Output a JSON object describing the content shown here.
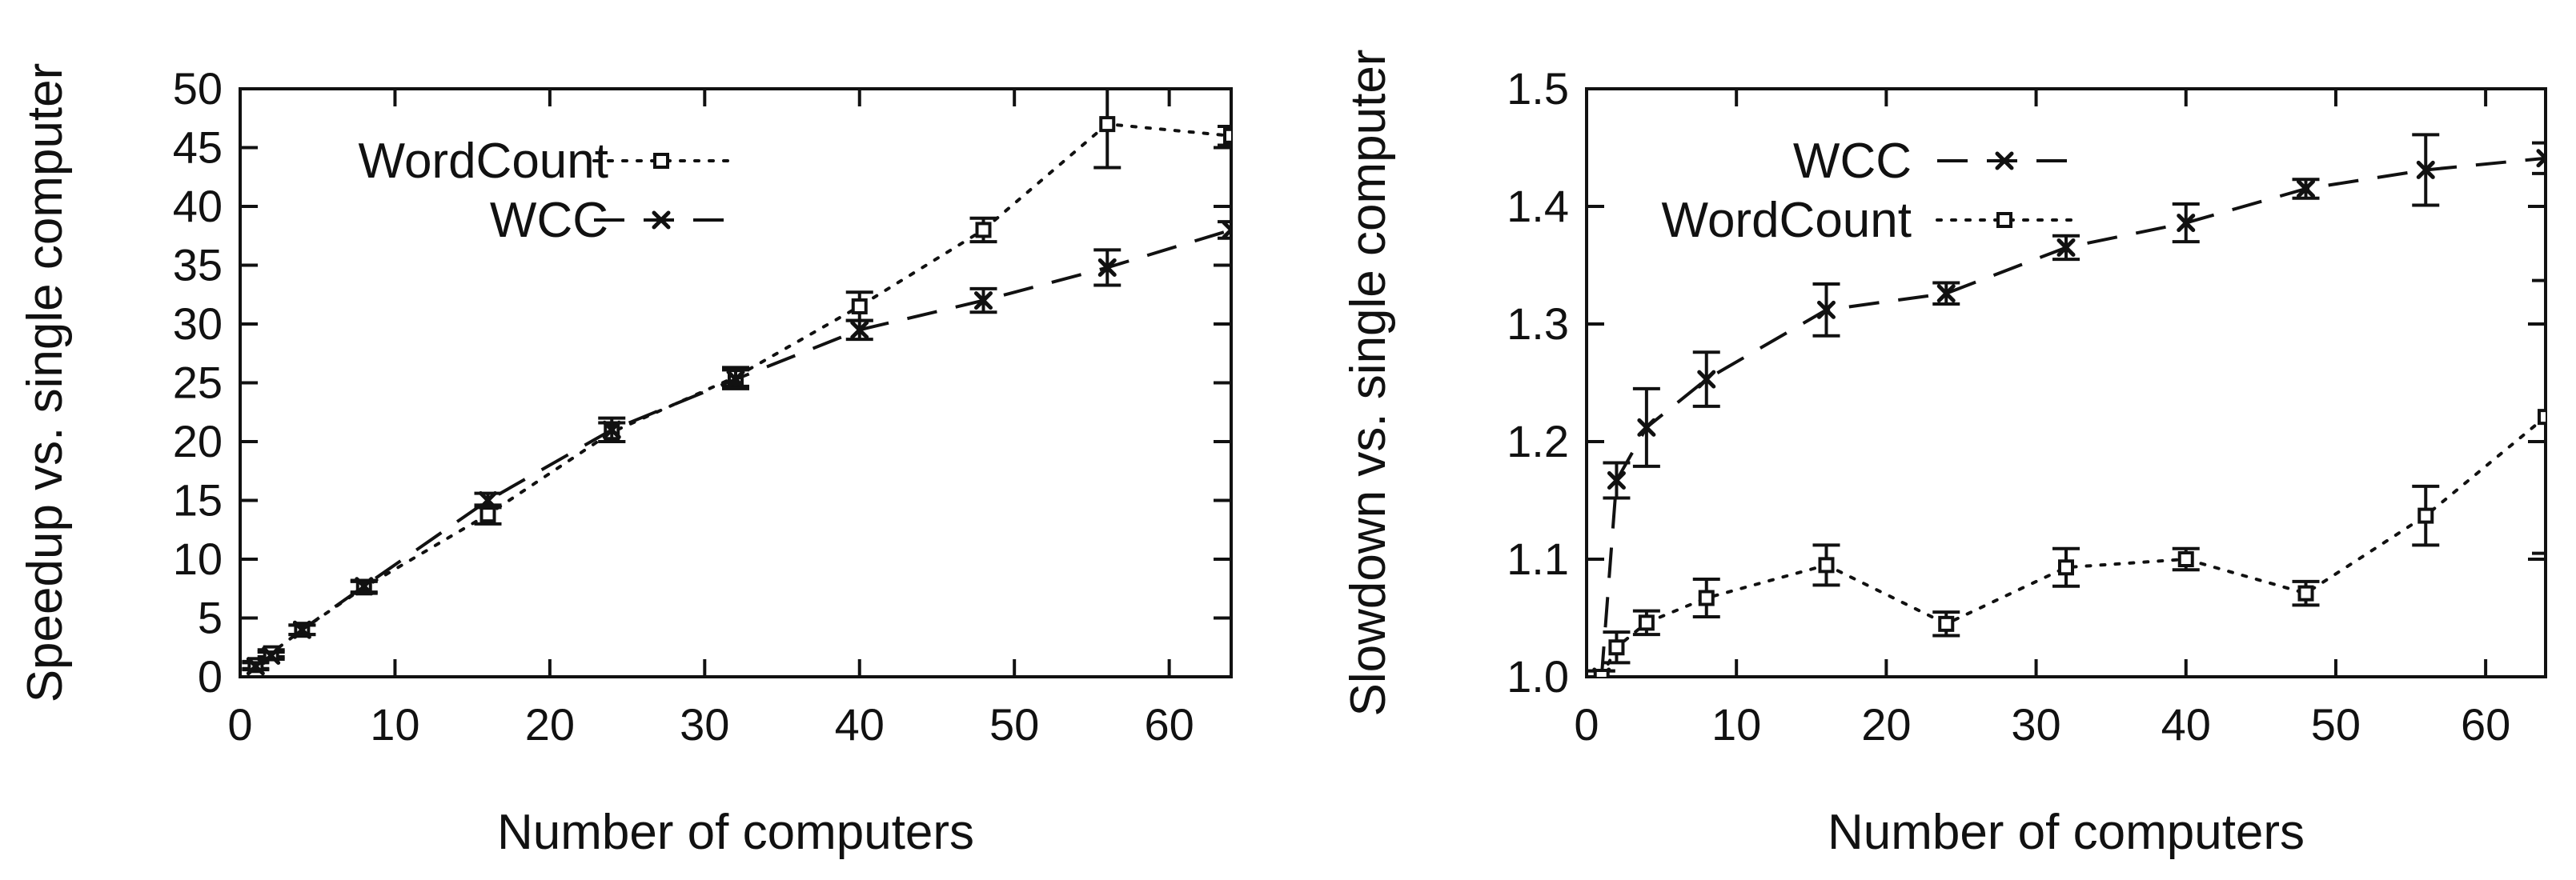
{
  "chart_data": [
    {
      "type": "line",
      "xlabel": "Number of computers",
      "ylabel": "Speedup vs. single computer",
      "xlim": [
        0,
        64
      ],
      "ylim": [
        0,
        50
      ],
      "xticks": [
        0,
        10,
        20,
        30,
        40,
        50,
        60
      ],
      "yticks": [
        0,
        5,
        10,
        15,
        20,
        25,
        30,
        35,
        40,
        45,
        50
      ],
      "grid": false,
      "legend_position": "top-left",
      "series": [
        {
          "name": "WordCount",
          "line_style": "dotted",
          "marker": "square",
          "color": "#111111",
          "points": [
            {
              "x": 1,
              "y": 1,
              "err": 0.3
            },
            {
              "x": 2,
              "y": 2,
              "err": 0.3
            },
            {
              "x": 4,
              "y": 4,
              "err": 0.4
            },
            {
              "x": 8,
              "y": 7.6,
              "err": 0.5
            },
            {
              "x": 16,
              "y": 13.8,
              "err": 0.8
            },
            {
              "x": 24,
              "y": 20.8,
              "err": 0.8
            },
            {
              "x": 32,
              "y": 25.5,
              "err": 0.8
            },
            {
              "x": 40,
              "y": 31.5,
              "err": 1.2
            },
            {
              "x": 48,
              "y": 38,
              "err": 1
            },
            {
              "x": 56,
              "y": 47,
              "err": 3.7
            },
            {
              "x": 64,
              "y": 46,
              "err": 0.8
            }
          ]
        },
        {
          "name": "WCC",
          "line_style": "dashed",
          "marker": "cross",
          "color": "#111111",
          "points": [
            {
              "x": 1,
              "y": 0.9,
              "err": 0.3
            },
            {
              "x": 2,
              "y": 1.8,
              "err": 0.3
            },
            {
              "x": 4,
              "y": 4,
              "err": 0.4
            },
            {
              "x": 8,
              "y": 7.7,
              "err": 0.5
            },
            {
              "x": 16,
              "y": 15,
              "err": 0.6
            },
            {
              "x": 24,
              "y": 21,
              "err": 1
            },
            {
              "x": 32,
              "y": 25.3,
              "err": 0.8
            },
            {
              "x": 40,
              "y": 29.5,
              "err": 0.8
            },
            {
              "x": 48,
              "y": 32,
              "err": 1
            },
            {
              "x": 56,
              "y": 34.8,
              "err": 1.5
            },
            {
              "x": 64,
              "y": 38,
              "err": 0.7
            }
          ]
        }
      ]
    },
    {
      "type": "line",
      "xlabel": "Number of computers",
      "ylabel": "Slowdown vs. single computer",
      "xlim": [
        0,
        64
      ],
      "ylim": [
        1,
        1.5
      ],
      "xticks": [
        0,
        10,
        20,
        30,
        40,
        50,
        60
      ],
      "yticks": [
        1,
        1.1,
        1.2,
        1.3,
        1.4,
        1.5
      ],
      "grid": false,
      "legend_position": "top-center",
      "series": [
        {
          "name": "WCC",
          "line_style": "dashed",
          "marker": "cross",
          "color": "#111111",
          "points": [
            {
              "x": 1,
              "y": 1.0,
              "err": 0.005
            },
            {
              "x": 2,
              "y": 1.167,
              "err": 0.015
            },
            {
              "x": 4,
              "y": 1.212,
              "err": 0.033
            },
            {
              "x": 8,
              "y": 1.253,
              "err": 0.023
            },
            {
              "x": 16,
              "y": 1.312,
              "err": 0.022
            },
            {
              "x": 24,
              "y": 1.326,
              "err": 0.009
            },
            {
              "x": 32,
              "y": 1.365,
              "err": 0.01
            },
            {
              "x": 40,
              "y": 1.386,
              "err": 0.016
            },
            {
              "x": 48,
              "y": 1.415,
              "err": 0.008
            },
            {
              "x": 56,
              "y": 1.431,
              "err": 0.03
            },
            {
              "x": 64,
              "y": 1.441,
              "err": 0.013
            }
          ]
        },
        {
          "name": "WordCount",
          "line_style": "dotted",
          "marker": "square",
          "color": "#111111",
          "points": [
            {
              "x": 1,
              "y": 1.0,
              "err": 0.005
            },
            {
              "x": 2,
              "y": 1.025,
              "err": 0.013
            },
            {
              "x": 4,
              "y": 1.046,
              "err": 0.01
            },
            {
              "x": 8,
              "y": 1.067,
              "err": 0.016
            },
            {
              "x": 16,
              "y": 1.095,
              "err": 0.017
            },
            {
              "x": 24,
              "y": 1.045,
              "err": 0.01
            },
            {
              "x": 32,
              "y": 1.093,
              "err": 0.016
            },
            {
              "x": 40,
              "y": 1.1,
              "err": 0.009
            },
            {
              "x": 48,
              "y": 1.071,
              "err": 0.01
            },
            {
              "x": 56,
              "y": 1.137,
              "err": 0.025
            },
            {
              "x": 64,
              "y": 1.221,
              "err": 0.116
            }
          ]
        }
      ]
    }
  ]
}
